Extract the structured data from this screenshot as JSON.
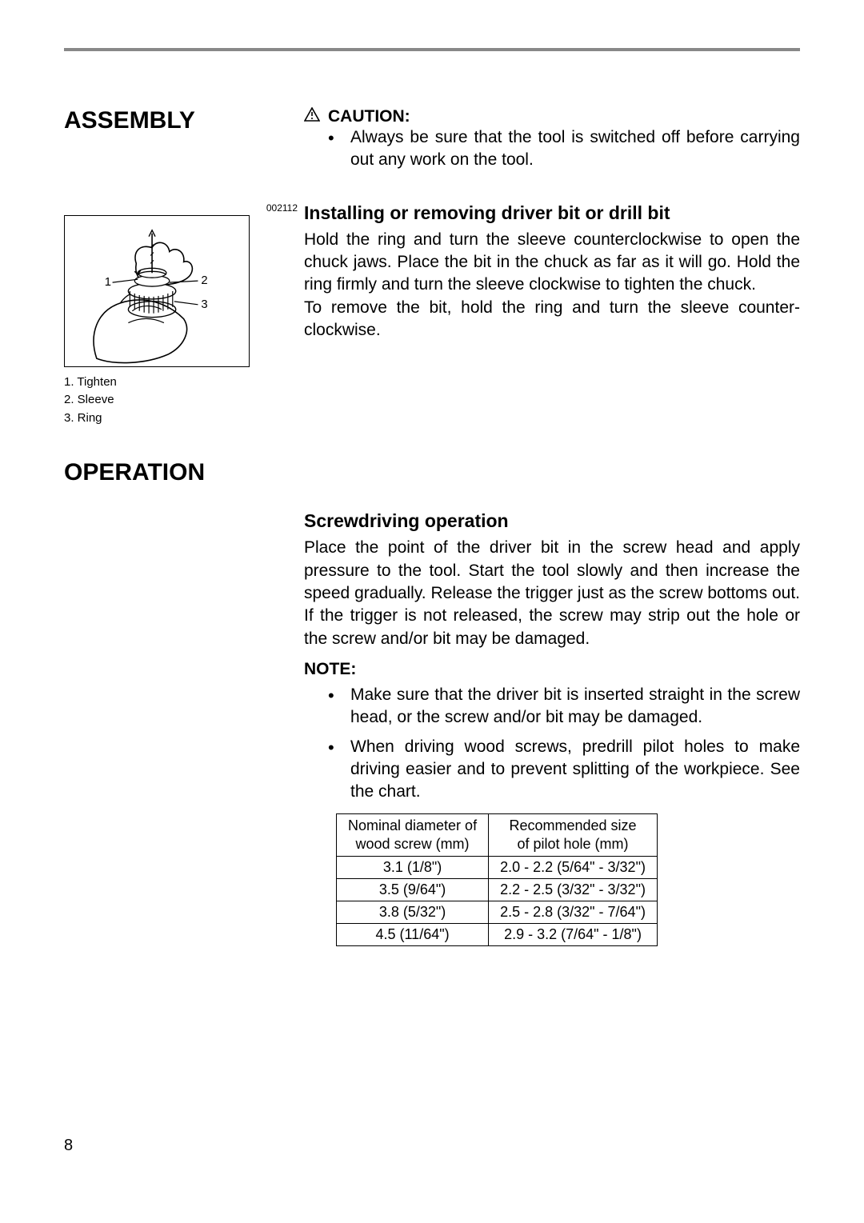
{
  "sections": {
    "assembly": {
      "title": "ASSEMBLY",
      "caution_label": "CAUTION:",
      "caution_bullets": [
        "Always be sure that the tool is switched off before carrying out any work on the tool."
      ],
      "install_heading": "Installing or removing driver bit or drill bit",
      "install_body": "Hold the ring and turn the sleeve counterclockwise to open the chuck jaws. Place the bit in the chuck as far as it will go. Hold the ring firmly and turn the sleeve clockwise to tighten the chuck.\nTo remove the bit, hold the ring and turn the sleeve counter-clockwise.",
      "figure": {
        "id": "002112",
        "callouts": {
          "c1": "1",
          "c2": "2",
          "c3": "3"
        },
        "legend": [
          "1. Tighten",
          "2. Sleeve",
          "3. Ring"
        ]
      }
    },
    "operation": {
      "title": "OPERATION",
      "screw_heading": "Screwdriving operation",
      "screw_body": "Place the point of the driver bit in the screw head and apply pressure to the tool. Start the tool slowly and then increase the speed gradually. Release the trigger just as the screw bottoms out. If the trigger is not released, the screw may strip out the hole or the screw and/or bit may be damaged.",
      "note_label": "NOTE:",
      "note_bullets": [
        "Make sure that the driver bit is inserted straight in the screw head, or the screw and/or bit may be damaged.",
        "When driving wood screws, predrill pilot holes to make driving easier and to prevent splitting of the workpiece. See the chart."
      ],
      "pilot_table": {
        "type": "table",
        "columns": [
          "Nominal diameter of\nwood screw (mm)",
          "Recommended size\nof pilot hole (mm)"
        ],
        "rows": [
          [
            "3.1 (1/8\")",
            "2.0 - 2.2 (5/64\" - 3/32\")"
          ],
          [
            "3.5 (9/64\")",
            "2.2 - 2.5 (3/32\" - 3/32\")"
          ],
          [
            "3.8 (5/32\")",
            "2.5 - 2.8 (3/32\" - 7/64\")"
          ],
          [
            "4.5 (11/64\")",
            "2.9 - 3.2 (7/64\" - 1/8\")"
          ]
        ],
        "border_color": "#000000",
        "font_size": 18
      }
    }
  },
  "page_number": "8",
  "colors": {
    "hr": "#888888",
    "text": "#000000",
    "background": "#ffffff"
  }
}
